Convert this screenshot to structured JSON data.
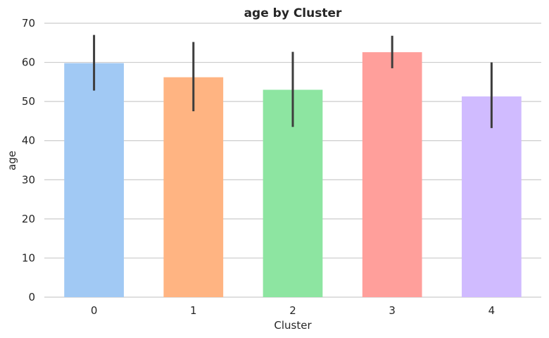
{
  "chart_data": {
    "type": "bar",
    "title": "age by Cluster",
    "xlabel": "Cluster",
    "ylabel": "age",
    "categories": [
      "0",
      "1",
      "2",
      "3",
      "4"
    ],
    "values": [
      59.8,
      56.2,
      53.0,
      62.6,
      51.3
    ],
    "error_low": [
      52.8,
      47.5,
      43.5,
      58.5,
      43.2
    ],
    "error_high": [
      67.0,
      65.2,
      62.7,
      66.8,
      60.0
    ],
    "colors": [
      "#a1c9f4",
      "#ffb482",
      "#8de5a1",
      "#ff9f9b",
      "#d0bbff"
    ],
    "ylim": [
      0,
      70
    ],
    "yticks": [
      0,
      10,
      20,
      30,
      40,
      50,
      60,
      70
    ],
    "grid": true
  }
}
